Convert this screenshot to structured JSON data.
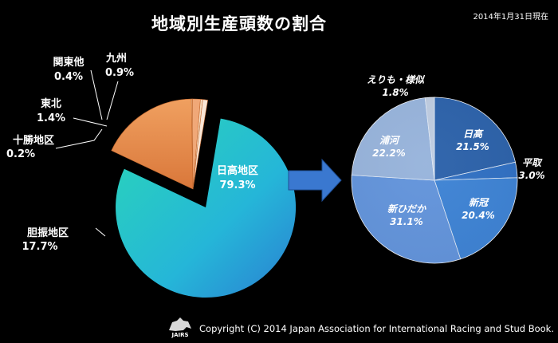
{
  "title": "地域別生産頭数の割合",
  "date_note": "2014年1月31日現在",
  "copyright": "Copyright (C) 2014 Japan Association for International Racing and Stud Book.",
  "logo_text": "JAIRS",
  "chart_data": [
    {
      "type": "pie",
      "title": "",
      "unit": "%",
      "categories": [
        "日高地区",
        "胆振地区",
        "十勝地区",
        "東北",
        "関東他",
        "九州"
      ],
      "values": [
        79.3,
        17.7,
        0.2,
        1.4,
        0.4,
        0.9
      ],
      "value_labels": [
        "79.3%",
        "17.7%",
        "0.2%",
        "1.4%",
        "0.4%",
        "0.9%"
      ],
      "colors": [
        "#25bfd6",
        "#e8894a",
        "#f3c8a0",
        "#f0a878",
        "#f7dcc0",
        "#f9e6d6"
      ],
      "exploded": [
        "日高地区"
      ]
    },
    {
      "type": "pie",
      "title": "",
      "unit": "%",
      "categories": [
        "日高",
        "平取",
        "新冠",
        "新ひだか",
        "浦河",
        "えりも・様似"
      ],
      "values": [
        21.5,
        3.0,
        20.4,
        31.1,
        22.2,
        1.8
      ],
      "value_labels": [
        "21.5%",
        "3.0%",
        "20.4%",
        "31.1%",
        "22.2%",
        "1.8%"
      ],
      "colors": [
        "#2a5fa6",
        "#2f70c4",
        "#3f86d8",
        "#6a9ae0",
        "#a8bfe0",
        "#d6dce6"
      ]
    }
  ]
}
